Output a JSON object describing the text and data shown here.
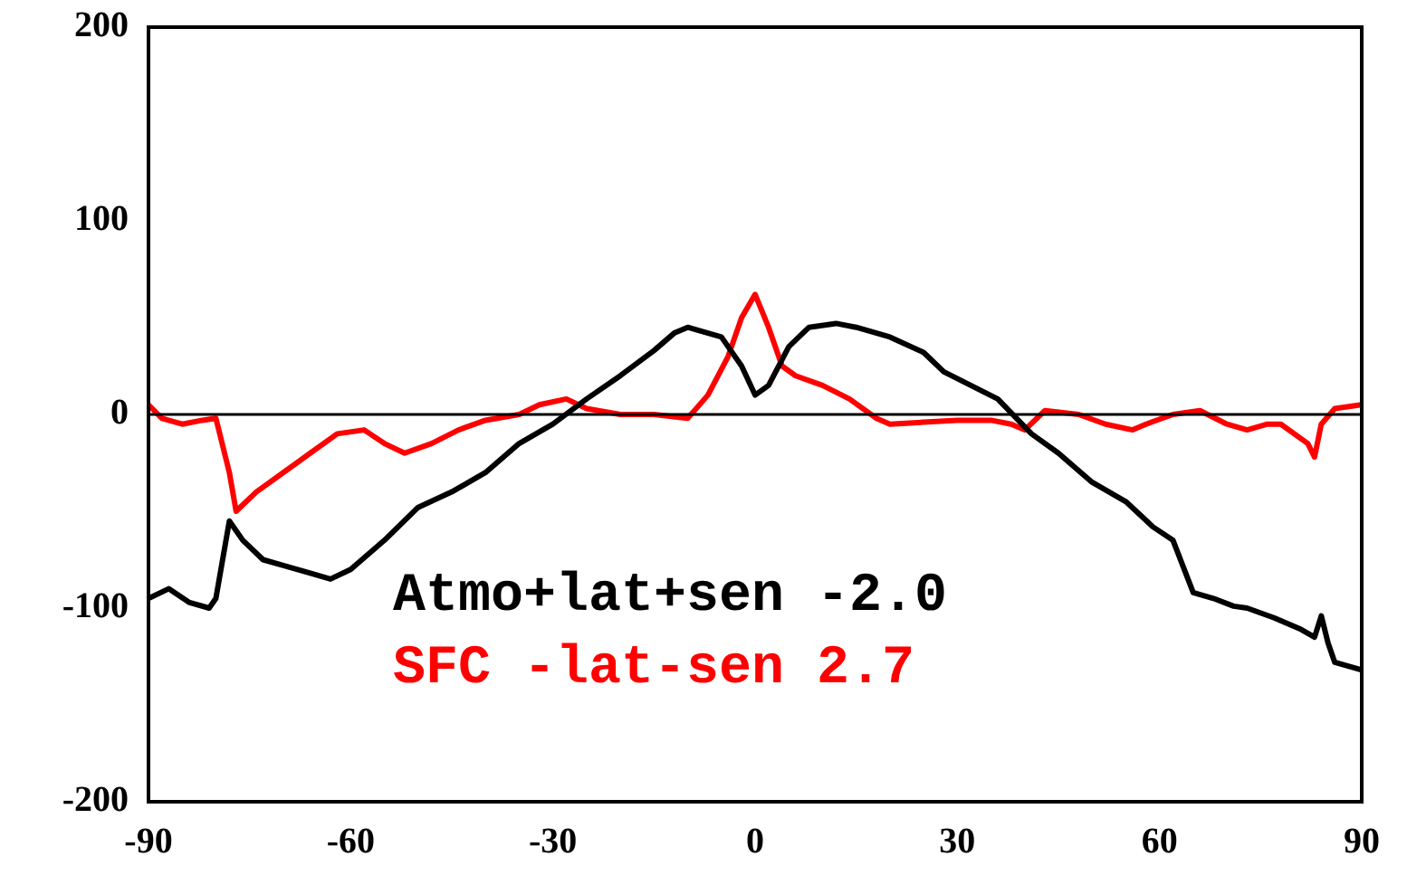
{
  "chart_data": {
    "type": "line",
    "xlim": [
      -90,
      90
    ],
    "xticks": [
      -90,
      -60,
      -30,
      0,
      30,
      60,
      90
    ],
    "ylim": [
      -200,
      200
    ],
    "yticks": [
      -200,
      -100,
      0,
      100,
      200
    ],
    "grid": false,
    "marker": "none",
    "line_style": "solid",
    "ref_lines": [
      {
        "axis": "y",
        "value": 0,
        "color": "#000000"
      }
    ],
    "series": [
      {
        "name": "Atmo+lat+sen -2.0",
        "color": "#000000",
        "x": [
          -90,
          -87,
          -84,
          -81,
          -80,
          -78,
          -76,
          -73,
          -70,
          -66,
          -63,
          -60,
          -55,
          -50,
          -45,
          -40,
          -35,
          -30,
          -25,
          -20,
          -15,
          -12,
          -10,
          -5,
          -2,
          0,
          2,
          5,
          8,
          12,
          15,
          20,
          25,
          28,
          32,
          36,
          41,
          45,
          50,
          55,
          59,
          62,
          65,
          68,
          71,
          73,
          77,
          81,
          83,
          84,
          85,
          86,
          88,
          90
        ],
        "values": [
          -95,
          -90,
          -97,
          -100,
          -95,
          -55,
          -65,
          -75,
          -78,
          -82,
          -85,
          -80,
          -65,
          -48,
          -40,
          -30,
          -15,
          -5,
          8,
          20,
          33,
          42,
          45,
          40,
          25,
          10,
          15,
          35,
          45,
          47,
          45,
          40,
          32,
          22,
          15,
          8,
          -10,
          -20,
          -35,
          -45,
          -58,
          -65,
          -92,
          -95,
          -99,
          -100,
          -105,
          -111,
          -115,
          -104,
          -118,
          -128,
          -130,
          -132
        ]
      },
      {
        "name": "SFC -lat-sen 2.7",
        "color": "#ff0000",
        "x": [
          -90,
          -88,
          -85,
          -82,
          -80,
          -78,
          -77,
          -74,
          -70,
          -66,
          -62,
          -58,
          -55,
          -52,
          -48,
          -44,
          -40,
          -35,
          -32,
          -28,
          -25,
          -20,
          -15,
          -10,
          -7,
          -4,
          -2,
          0,
          2,
          4,
          6,
          10,
          14,
          18,
          20,
          25,
          30,
          35,
          38,
          40,
          43,
          48,
          52,
          56,
          58,
          62,
          66,
          70,
          73,
          76,
          78,
          82,
          83,
          84,
          86,
          90
        ],
        "values": [
          5,
          -2,
          -5,
          -3,
          -2,
          -30,
          -50,
          -40,
          -30,
          -20,
          -10,
          -8,
          -15,
          -20,
          -15,
          -8,
          -3,
          0,
          5,
          8,
          3,
          0,
          0,
          -2,
          10,
          30,
          50,
          62,
          45,
          25,
          20,
          15,
          8,
          -2,
          -5,
          -4,
          -3,
          -3,
          -5,
          -8,
          2,
          0,
          -5,
          -8,
          -5,
          0,
          2,
          -5,
          -8,
          -5,
          -5,
          -15,
          -22,
          -5,
          3,
          5
        ]
      }
    ]
  }
}
